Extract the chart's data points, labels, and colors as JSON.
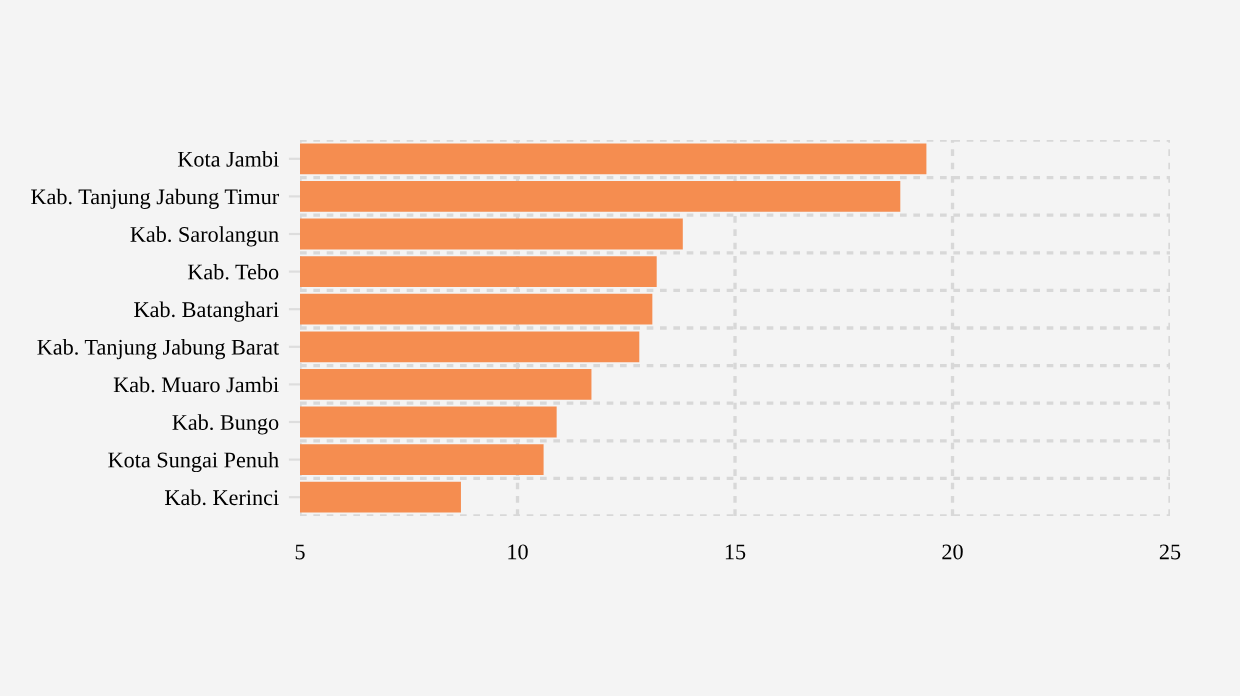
{
  "chart_data": {
    "type": "bar",
    "orientation": "horizontal",
    "categories": [
      "Kota Jambi",
      "Kab. Tanjung Jabung Timur",
      "Kab. Sarolangun",
      "Kab. Tebo",
      "Kab. Batanghari",
      "Kab. Tanjung Jabung Barat",
      "Kab. Muaro Jambi",
      "Kab. Bungo",
      "Kota Sungai Penuh",
      "Kab. Kerinci"
    ],
    "values": [
      19.4,
      18.8,
      13.8,
      13.2,
      13.1,
      12.8,
      11.7,
      10.9,
      10.6,
      8.7
    ],
    "color": "#f58d50",
    "xlim": [
      5,
      25
    ],
    "xticks": [
      5,
      10,
      15,
      20,
      25
    ],
    "grid": true,
    "legend": false
  }
}
